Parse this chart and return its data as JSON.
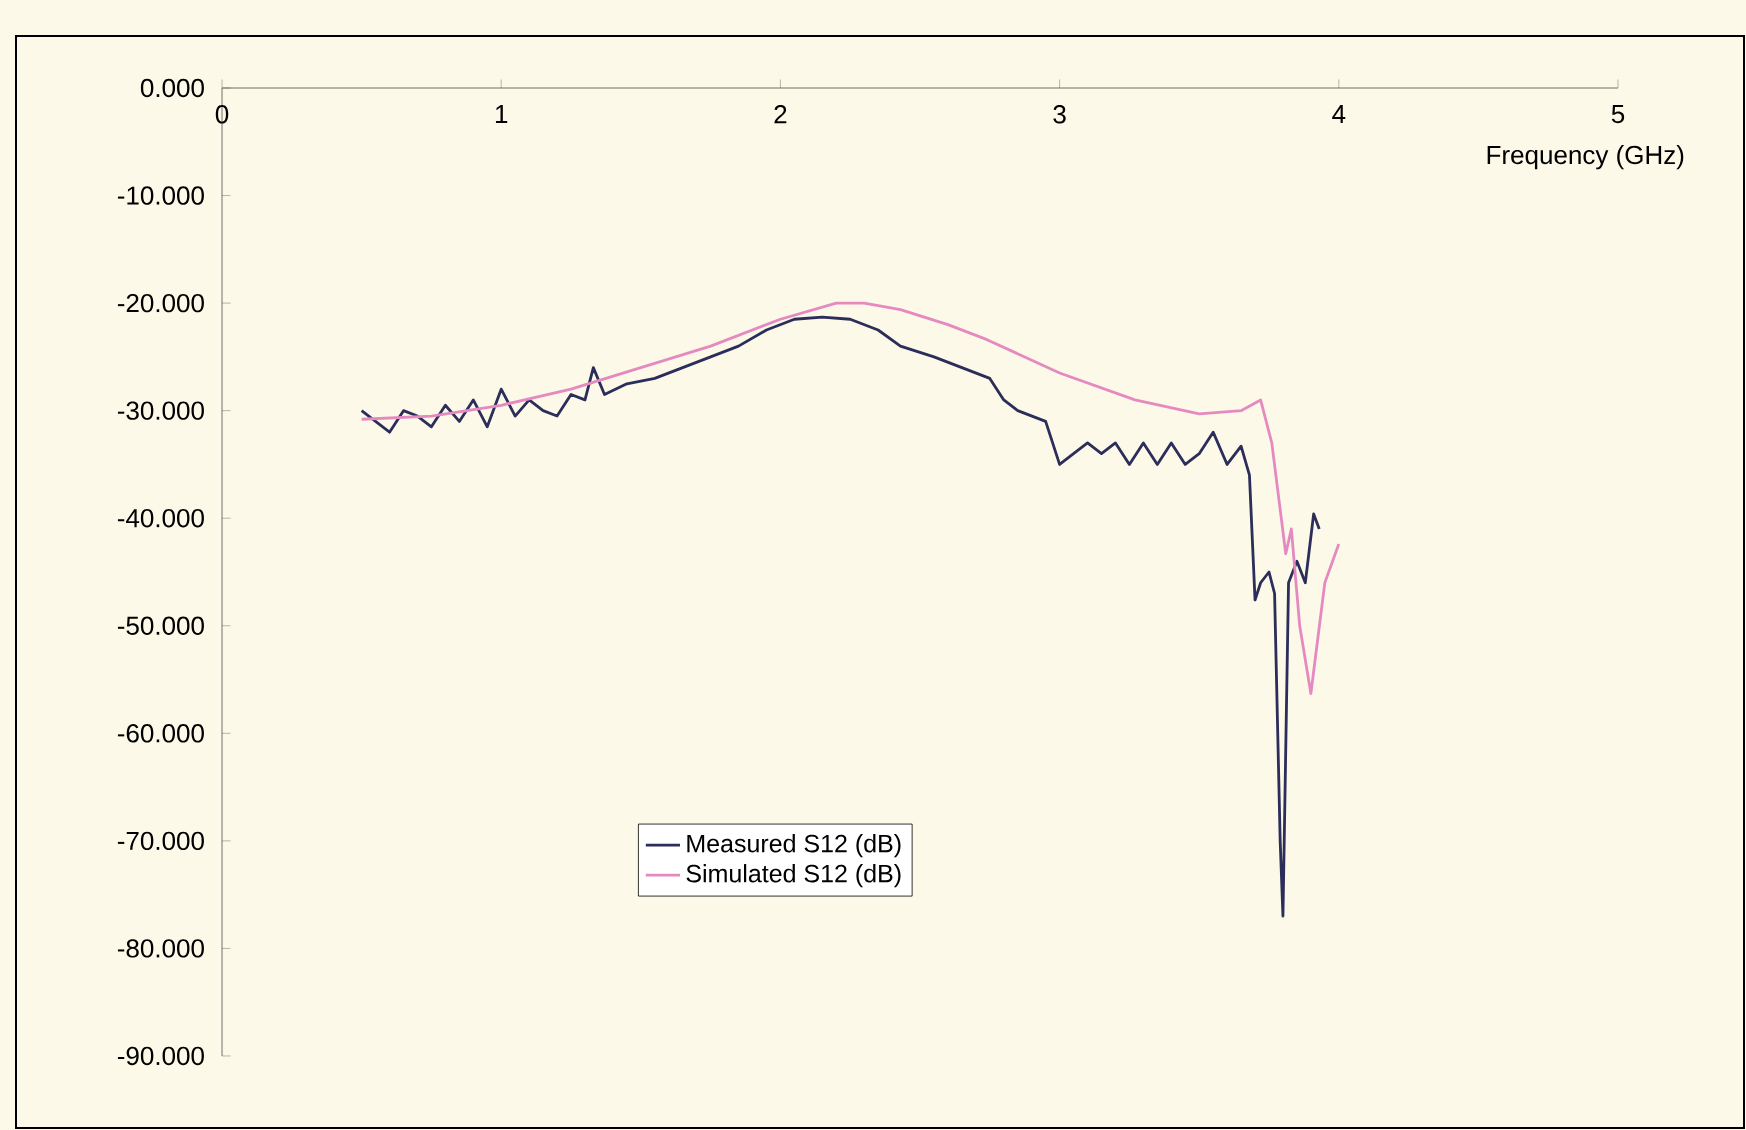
{
  "chart_data": {
    "type": "line",
    "xlabel": "Frequency (GHz)",
    "xlim": [
      0,
      5
    ],
    "xticks": [
      0,
      1,
      2,
      3,
      4,
      5
    ],
    "ylim": [
      -90,
      0
    ],
    "yticks": [
      {
        "value": 0,
        "label": "0.000"
      },
      {
        "value": -10,
        "label": "-10.000"
      },
      {
        "value": -20,
        "label": "-20.000"
      },
      {
        "value": -30,
        "label": "-30.000"
      },
      {
        "value": -40,
        "label": "-40.000"
      },
      {
        "value": -50,
        "label": "-50.000"
      },
      {
        "value": -60,
        "label": "-60.000"
      },
      {
        "value": -70,
        "label": "-70.000"
      },
      {
        "value": -80,
        "label": "-80.000"
      },
      {
        "value": -90,
        "label": "-90.000"
      }
    ],
    "grid": false,
    "legend": "bottom",
    "marker": "none",
    "line_style": "solid",
    "series": [
      {
        "name": "Measured S12 (dB)",
        "color": "#2b2d5a",
        "x": [
          0.5,
          0.55,
          0.6,
          0.65,
          0.7,
          0.75,
          0.8,
          0.85,
          0.9,
          0.95,
          1.0,
          1.05,
          1.1,
          1.15,
          1.2,
          1.25,
          1.3,
          1.33,
          1.37,
          1.45,
          1.55,
          1.65,
          1.75,
          1.85,
          1.95,
          2.05,
          2.15,
          2.25,
          2.35,
          2.43,
          2.55,
          2.65,
          2.75,
          2.8,
          2.85,
          2.95,
          3.0,
          3.05,
          3.1,
          3.15,
          3.2,
          3.25,
          3.3,
          3.35,
          3.4,
          3.45,
          3.5,
          3.55,
          3.6,
          3.65,
          3.68,
          3.7,
          3.72,
          3.75,
          3.77,
          3.79,
          3.8,
          3.82,
          3.85,
          3.88,
          3.91,
          3.93
        ],
        "values": [
          -30,
          -31,
          -32,
          -30,
          -30.5,
          -31.5,
          -29.5,
          -31,
          -29,
          -31.5,
          -28,
          -30.5,
          -29,
          -30,
          -30.5,
          -28.5,
          -29,
          -26,
          -28.5,
          -27.5,
          -27,
          -26,
          -25,
          -24,
          -22.5,
          -21.5,
          -21.3,
          -21.5,
          -22.5,
          -24,
          -25,
          -26,
          -27,
          -29,
          -30,
          -31,
          -35,
          -34,
          -33,
          -34,
          -33,
          -35,
          -33,
          -35,
          -33,
          -35,
          -34,
          -32,
          -35,
          -33.3,
          -36,
          -47.6,
          -46,
          -45,
          -47,
          -70,
          -77,
          -46,
          -44,
          -46,
          -39.6,
          -41
        ]
      },
      {
        "name": "Simulated S12 (dB)",
        "color": "#e58ac0",
        "x": [
          0.5,
          0.75,
          1.0,
          1.25,
          1.5,
          1.75,
          2.0,
          2.2,
          2.3,
          2.43,
          2.6,
          2.74,
          3.0,
          3.27,
          3.5,
          3.65,
          3.72,
          3.76,
          3.81,
          3.83,
          3.86,
          3.9,
          3.95,
          4.0
        ],
        "values": [
          -30.8,
          -30.5,
          -29.5,
          -28,
          -26,
          -24,
          -21.5,
          -20,
          -20,
          -20.6,
          -22,
          -23.4,
          -26.5,
          -29,
          -30.3,
          -30,
          -29,
          -33,
          -43.3,
          -41,
          -50,
          -56.3,
          -46,
          -42.4
        ]
      }
    ]
  }
}
